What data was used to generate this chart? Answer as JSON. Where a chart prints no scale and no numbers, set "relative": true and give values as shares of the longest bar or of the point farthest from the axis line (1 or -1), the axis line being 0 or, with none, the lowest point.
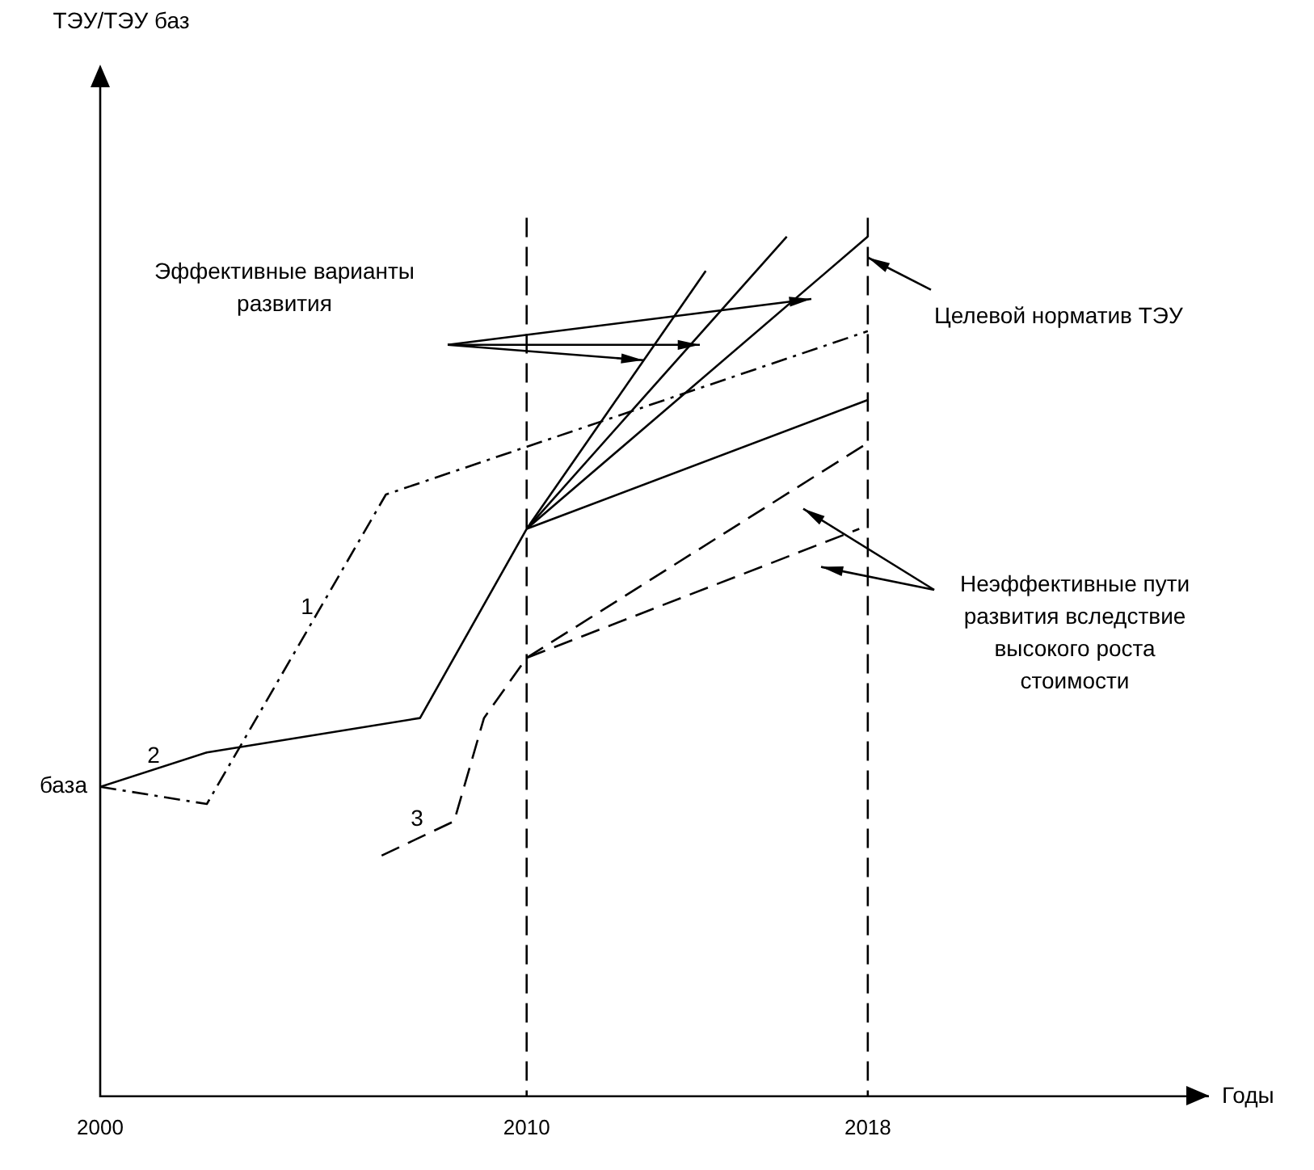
{
  "chart_data": {
    "type": "line",
    "relative": true,
    "xlabel": "Годы",
    "xlim": [
      2000,
      2026
    ],
    "xticks": [
      2000,
      2010,
      2018
    ],
    "grid": false,
    "legend": false,
    "marker": "none",
    "series": [
      {
        "type": "line",
        "color": "#000000",
        "line_style": "dashdot",
        "x": [
          2000,
          2002.5,
          2006.7,
          2018
        ],
        "values": [
          0.36,
          0.34,
          0.7,
          0.89
        ]
      },
      {
        "type": "line",
        "color": "#000000",
        "line_style": "solid",
        "x": [
          2000,
          2002.5,
          2007.5,
          2010,
          2018
        ],
        "values": [
          0.36,
          0.4,
          0.44,
          0.66,
          0.81
        ]
      },
      {
        "type": "line",
        "color": "#000000",
        "line_style": "solid",
        "x": [
          2010,
          2018
        ],
        "values": [
          0.66,
          1.0
        ]
      },
      {
        "type": "line",
        "color": "#000000",
        "line_style": "solid",
        "x": [
          2010,
          2016.1
        ],
        "values": [
          0.66,
          1.0
        ]
      },
      {
        "type": "line",
        "color": "#000000",
        "line_style": "solid",
        "x": [
          2010,
          2014.2
        ],
        "values": [
          0.66,
          0.96
        ]
      },
      {
        "type": "line",
        "color": "#000000",
        "line_style": "dashed",
        "x": [
          2006.6,
          2008.3,
          2009,
          2010,
          2017.8
        ],
        "values": [
          0.28,
          0.32,
          0.44,
          0.51,
          0.66
        ]
      },
      {
        "type": "line",
        "color": "#000000",
        "line_style": "dashed",
        "x": [
          2010,
          2018
        ],
        "values": [
          0.51,
          0.76
        ]
      }
    ],
    "ref_lines": [
      {
        "axis": "x",
        "value": 2010,
        "line_style": "dashed",
        "color": "#000000"
      },
      {
        "axis": "x",
        "value": 2018,
        "line_style": "dashed",
        "color": "#000000"
      }
    ],
    "annotations": [
      {
        "text": "база",
        "x": 2000,
        "y": 0.36
      },
      "1",
      "2",
      "3",
      "Эффективные варианты развития",
      "Целевой норматив ТЭУ",
      "Неэффективные пути развития вследствие высокого роста стоимости",
      "ТЭУ/ТЭУ баз"
    ]
  }
}
